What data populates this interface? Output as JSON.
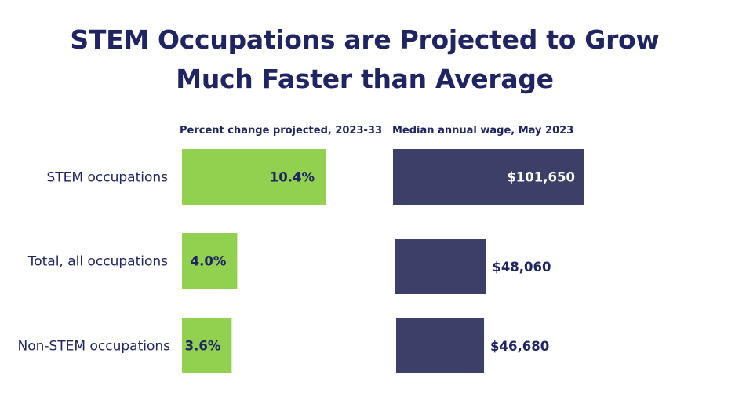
{
  "title": {
    "line1": "STEM Occupations are Projected to Grow",
    "line2": "Much Faster than Average"
  },
  "colors": {
    "title": "#1f2463",
    "growth_bar": "#92d050",
    "wage_bar": "#3c3f68",
    "growth_label": "#1f2463",
    "wage_label_inside": "#ffffff",
    "wage_label_outside": "#1f2463"
  },
  "chart_data": [
    {
      "type": "bar",
      "orientation": "horizontal",
      "title": "Percent change projected, 2023-33",
      "categories": [
        "STEM occupations",
        "Total, all occupations",
        "Non-STEM occupations"
      ],
      "values": [
        10.4,
        4.0,
        3.6
      ],
      "value_labels": [
        "10.4%",
        "4.0%",
        "3.6%"
      ],
      "unit": "%",
      "grid": false,
      "legend": "none"
    },
    {
      "type": "bar",
      "orientation": "horizontal",
      "title": "Median annual wage, May 2023",
      "categories": [
        "STEM occupations",
        "Total, all occupations",
        "Non-STEM occupations"
      ],
      "values": [
        101650,
        48060,
        46680
      ],
      "value_labels": [
        "$101,650",
        "$48,060",
        "$46,680"
      ],
      "unit": "$",
      "grid": false,
      "legend": "none"
    }
  ]
}
